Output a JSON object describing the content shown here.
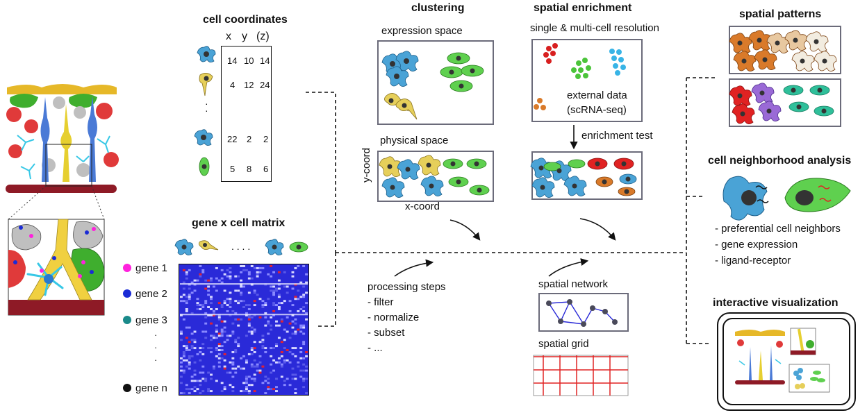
{
  "coords": {
    "title": "cell coordinates",
    "headers": [
      "x",
      "y",
      "(z)"
    ],
    "rows": [
      [
        "14",
        "10",
        "14"
      ],
      [
        "4",
        "12",
        "24"
      ],
      [
        "22",
        "2",
        "2"
      ],
      [
        "5",
        "8",
        "6"
      ]
    ],
    "dots": "·\n·"
  },
  "matrix": {
    "title": "gene x cell matrix",
    "dots": ". . . .",
    "genes": [
      "gene 1",
      "gene 2",
      "gene 3",
      "gene n"
    ],
    "gene_colors": [
      "#ff22dd",
      "#1a2bd6",
      "#1a8a8a",
      "#111111"
    ],
    "vdots": "·\n\n·\n\n·"
  },
  "clustering": {
    "title": "clustering",
    "expression": "expression space",
    "physical": "physical space",
    "ycoord": "y-coord",
    "xcoord": "x-coord"
  },
  "processing": {
    "title": "processing steps",
    "steps": [
      "- filter",
      "- normalize",
      "- subset",
      "- ..."
    ]
  },
  "enrichment": {
    "title": "spatial enrichment",
    "subtitle": "single & multi-cell resolution",
    "external1": "external data",
    "external2": "(scRNA-seq)",
    "test": "enrichment test"
  },
  "network": {
    "title": "spatial network"
  },
  "grid": {
    "title": "spatial grid"
  },
  "patterns": {
    "title": "spatial patterns"
  },
  "neighborhood": {
    "title": "cell neighborhood analysis",
    "items": [
      "- preferential cell neighbors",
      "- gene expression",
      "- ligand-receptor"
    ]
  },
  "interactive": {
    "title": "interactive visualization"
  },
  "colors": {
    "blue_cell": "#4aa3d6",
    "yellow_cell": "#e6cf5a",
    "green_cell": "#5fd04f",
    "red_cell": "#e02222",
    "orange_cell": "#d97a2a",
    "purple_cell": "#9a6ad6",
    "teal_cell": "#2fbf9a",
    "matrix_bg": "#2a2ad8"
  }
}
